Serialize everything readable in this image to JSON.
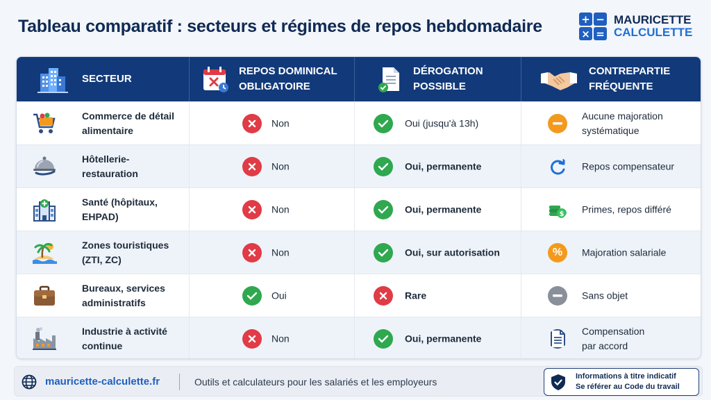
{
  "title": "Tableau comparatif : secteurs et régimes de repos hebdomadaire",
  "brand": {
    "line1": "MAURICETTE",
    "line2": "CALCULETTE",
    "symbols": [
      "+",
      "−",
      "×",
      "="
    ]
  },
  "columns": [
    {
      "line1": "SECTEUR",
      "line2": "",
      "icon": "office-buildings-icon"
    },
    {
      "line1": "REPOS DOMINICAL",
      "line2": "OBLIGATOIRE",
      "icon": "calendar-x-icon"
    },
    {
      "line1": "DÉROGATION",
      "line2": "POSSIBLE",
      "icon": "document-check-icon"
    },
    {
      "line1": "CONTREPARTIE",
      "line2": "FRÉQUENTE",
      "icon": "handshake-icon"
    }
  ],
  "rows": [
    {
      "sector1": "Commerce de détail",
      "sector2": "alimentaire",
      "sector_icon": "shopping-cart-icon",
      "dominical": "Non",
      "dominical_status": "no",
      "derogation": "Oui (jusqu'à 13h)",
      "derogation_status": "yes",
      "contrepartie1": "Aucune majoration",
      "contrepartie2": "systématique",
      "contrepartie_icon": "minus-orange-icon"
    },
    {
      "sector1": "Hôtellerie-",
      "sector2": "restauration",
      "sector_icon": "cloche-icon",
      "dominical": "Non",
      "dominical_status": "no",
      "derogation": "Oui, permanente",
      "derogation_status": "yes",
      "contrepartie1": "Repos compensateur",
      "contrepartie2": "",
      "contrepartie_icon": "refresh-icon"
    },
    {
      "sector1": "Santé (hôpitaux,",
      "sector2": "EHPAD)",
      "sector_icon": "hospital-icon",
      "dominical": "Non",
      "dominical_status": "no",
      "derogation": "Oui, permanente",
      "derogation_status": "yes",
      "contrepartie1": "Primes, repos différé",
      "contrepartie2": "",
      "contrepartie_icon": "money-stack-icon"
    },
    {
      "sector1": "Zones touristiques",
      "sector2": "(ZTI, ZC)",
      "sector_icon": "palm-island-icon",
      "dominical": "Non",
      "dominical_status": "no",
      "derogation": "Oui, sur autorisation",
      "derogation_status": "yes",
      "contrepartie1": "Majoration salariale",
      "contrepartie2": "",
      "contrepartie_icon": "percent-icon"
    },
    {
      "sector1": "Bureaux, services",
      "sector2": "administratifs",
      "sector_icon": "briefcase-icon",
      "dominical": "Oui",
      "dominical_status": "yes",
      "derogation": "Rare",
      "derogation_status": "no",
      "contrepartie1": "Sans objet",
      "contrepartie2": "",
      "contrepartie_icon": "minus-grey-icon"
    },
    {
      "sector1": "Industrie à activité",
      "sector2": "continue",
      "sector_icon": "factory-icon",
      "dominical": "Non",
      "dominical_status": "no",
      "derogation": "Oui, permanente",
      "derogation_status": "yes",
      "contrepartie1": "Compensation",
      "contrepartie2": "par accord",
      "contrepartie_icon": "document-icon"
    }
  ],
  "footer": {
    "site": "mauricette-calculette.fr",
    "tagline": "Outils et calculateurs pour les salariés et les employeurs",
    "disclaimer1": "Informations à titre indicatif",
    "disclaimer2": "Se référer au Code du travail"
  },
  "colors": {
    "header_bg": "#123a7a",
    "no": "#e03b46",
    "yes": "#2fa84f",
    "orange": "#f39a1e",
    "brand_blue": "#1f5fbf"
  }
}
